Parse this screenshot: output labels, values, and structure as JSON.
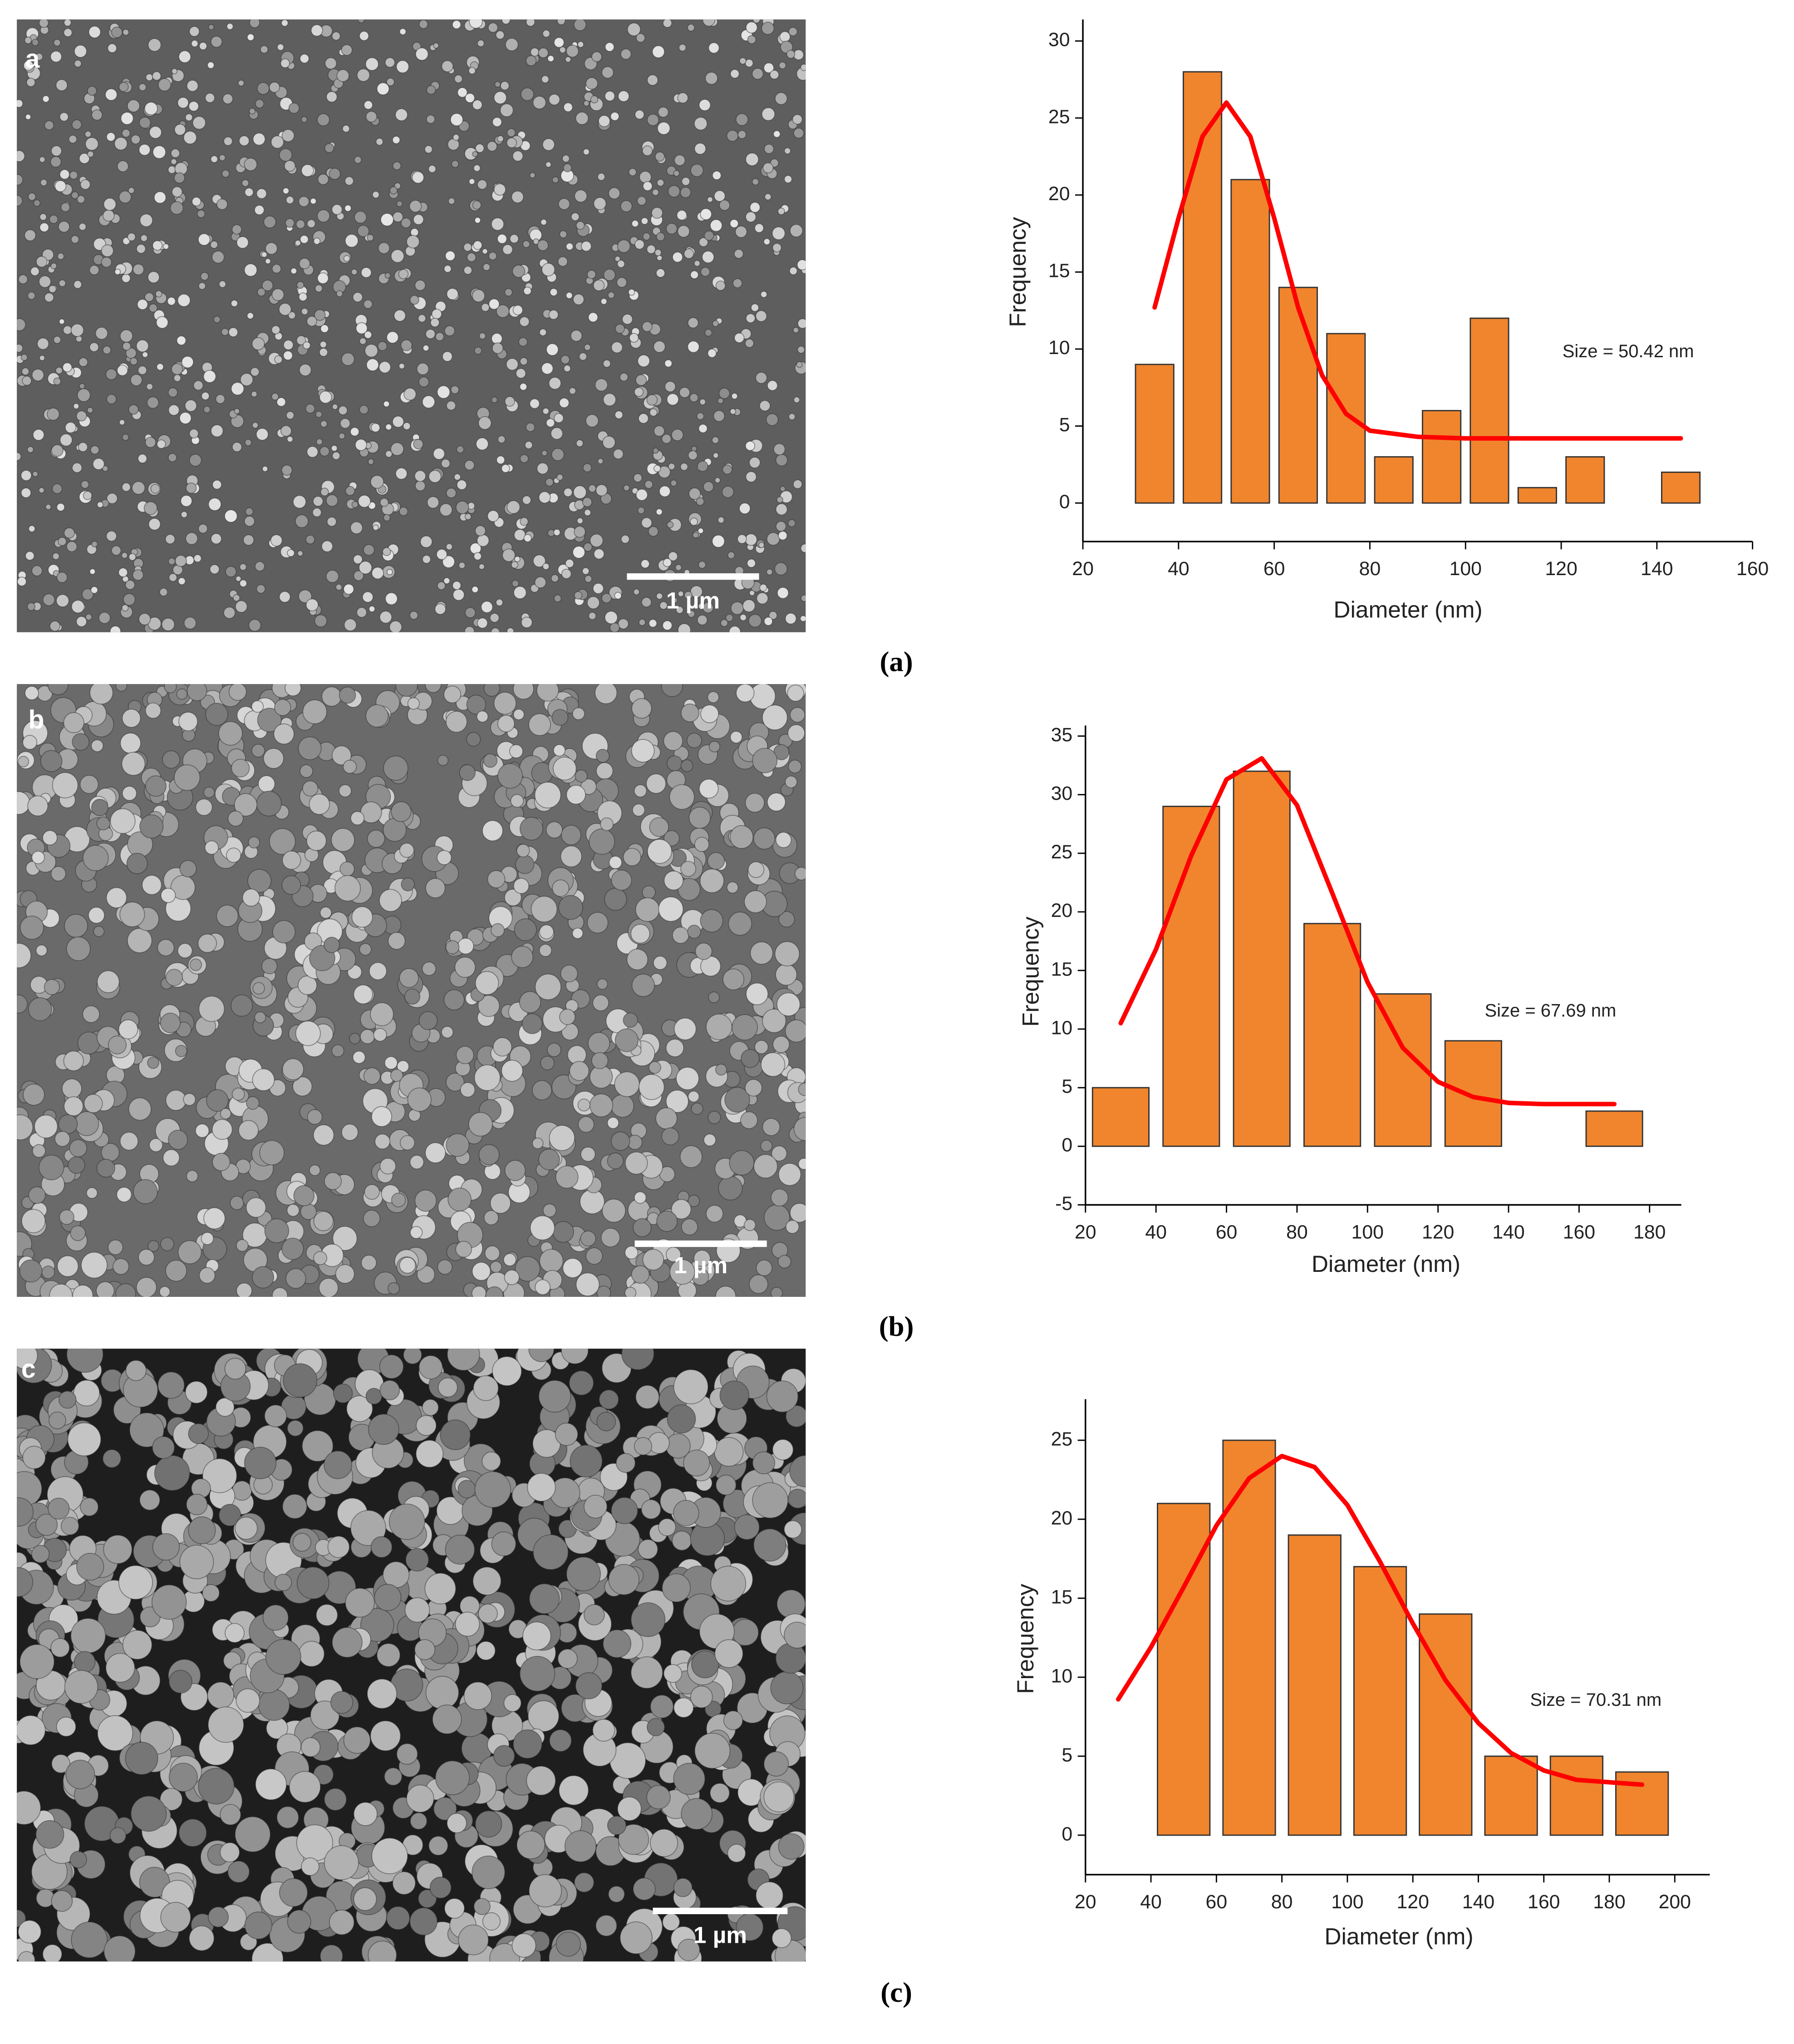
{
  "panels": [
    {
      "label": "a",
      "scale_bar": "1 µm",
      "caption": "(a)"
    },
    {
      "label": "b",
      "scale_bar": "1 µm",
      "caption": "(b)"
    },
    {
      "label": "c",
      "scale_bar": "1 µm",
      "caption": "(c)"
    }
  ],
  "chart_data": [
    {
      "type": "histogram",
      "xlabel": "Diameter (nm)",
      "ylabel": "Frequency",
      "annotation": "Size = 50.42 nm",
      "bins": [
        30,
        40,
        50,
        60,
        70,
        80,
        90,
        100,
        110,
        120,
        130,
        140,
        150
      ],
      "values": [
        9,
        28,
        21,
        14,
        11,
        3,
        6,
        12,
        1,
        3,
        0,
        2
      ],
      "color": "#f0852d",
      "xlim": [
        20,
        160
      ],
      "xticks": [
        20,
        40,
        60,
        80,
        100,
        120,
        140,
        160
      ],
      "ylim": [
        -2.5,
        31.4
      ],
      "yticks": [
        0,
        5,
        10,
        15,
        20,
        25,
        30
      ],
      "fit": {
        "color": "#ff0000",
        "x": [
          35,
          40,
          45,
          50,
          55,
          60,
          65,
          70,
          75,
          80,
          90,
          100,
          120,
          145
        ],
        "values": [
          12.7,
          18.5,
          23.8,
          26.0,
          23.8,
          18.5,
          12.7,
          8.3,
          5.8,
          4.7,
          4.3,
          4.2,
          4.2,
          4.2
        ]
      }
    },
    {
      "type": "histogram",
      "xlabel": "Diameter (nm)",
      "ylabel": "Frequency",
      "annotation": "Size = 67.69 nm",
      "bins": [
        20,
        40,
        60,
        80,
        100,
        120,
        140,
        160,
        180
      ],
      "values": [
        5,
        29,
        32,
        19,
        13,
        9,
        0,
        3
      ],
      "color": "#f0852d",
      "xlim": [
        20,
        189
      ],
      "xticks": [
        20,
        40,
        60,
        80,
        100,
        120,
        140,
        160,
        180
      ],
      "ylim": [
        -5,
        35.9
      ],
      "yticks": [
        -5,
        0,
        5,
        10,
        15,
        20,
        25,
        30,
        35
      ],
      "fit": {
        "color": "#ff0000",
        "x": [
          30,
          40,
          50,
          60,
          70,
          80,
          90,
          100,
          110,
          120,
          130,
          140,
          150,
          170
        ],
        "values": [
          10.5,
          16.8,
          24.8,
          31.3,
          33.1,
          29.1,
          21.6,
          14.0,
          8.4,
          5.5,
          4.2,
          3.7,
          3.6,
          3.6
        ]
      }
    },
    {
      "type": "histogram",
      "xlabel": "Diameter (nm)",
      "ylabel": "Frequency",
      "annotation": "Size = 70.31 nm",
      "bins": [
        20,
        40,
        60,
        80,
        100,
        120,
        140,
        160,
        180,
        200
      ],
      "values": [
        0,
        21,
        25,
        19,
        17,
        14,
        5,
        5,
        4
      ],
      "color": "#f0852d",
      "xlim": [
        20,
        210.7
      ],
      "xticks": [
        20,
        40,
        60,
        80,
        100,
        120,
        140,
        160,
        180,
        200
      ],
      "ylim": [
        -2.5,
        27.6
      ],
      "yticks": [
        0,
        5,
        10,
        15,
        20,
        25
      ],
      "fit": {
        "color": "#ff0000",
        "x": [
          30,
          40,
          50,
          60,
          70,
          80,
          90,
          100,
          110,
          120,
          130,
          140,
          150,
          160,
          170,
          190
        ],
        "values": [
          8.6,
          11.9,
          15.7,
          19.6,
          22.6,
          24.0,
          23.3,
          20.9,
          17.3,
          13.4,
          9.8,
          7.1,
          5.2,
          4.1,
          3.5,
          3.2
        ]
      }
    }
  ]
}
